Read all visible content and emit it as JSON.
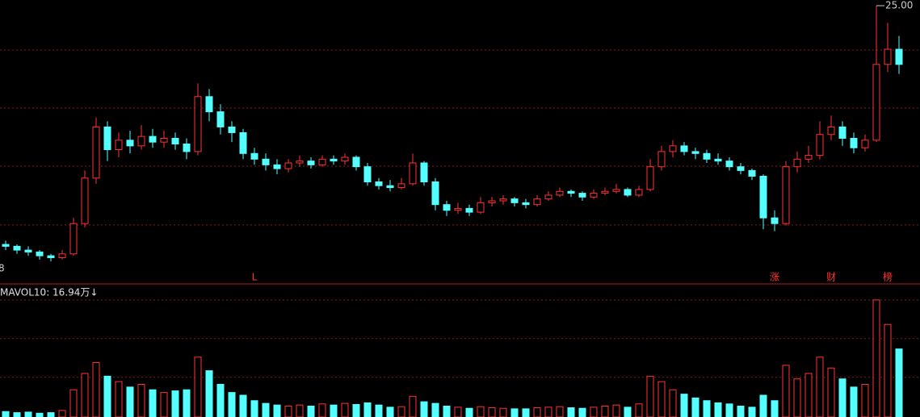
{
  "chart_data": {
    "type": "candlestick",
    "open": [
      12.4,
      12.3,
      12.1,
      12.0,
      11.8,
      11.7,
      11.9,
      13.5,
      15.9,
      18.6,
      17.4,
      17.9,
      17.6,
      18.1,
      17.8,
      18.0,
      17.7,
      17.3,
      20.2,
      19.4,
      18.6,
      18.3,
      17.2,
      16.9,
      16.6,
      16.4,
      16.7,
      16.8,
      16.6,
      16.9,
      16.8,
      17.0,
      16.5,
      15.7,
      15.5,
      15.4,
      15.6,
      16.7,
      15.7,
      14.5,
      14.2,
      14.3,
      14.1,
      14.6,
      14.7,
      14.8,
      14.6,
      14.5,
      14.8,
      15.0,
      15.2,
      15.1,
      14.9,
      15.1,
      15.2,
      15.3,
      15.0,
      15.3,
      16.5,
      17.3,
      17.6,
      17.3,
      17.2,
      16.9,
      16.8,
      16.5,
      16.3,
      16.0,
      13.8,
      13.5,
      16.5,
      16.9,
      17.1,
      18.2,
      18.6,
      18.0,
      17.5,
      17.9,
      21.9,
      22.7
    ],
    "high": [
      12.6,
      12.4,
      12.3,
      12.1,
      11.9,
      12.1,
      13.8,
      16.3,
      19.1,
      18.9,
      18.3,
      18.4,
      18.7,
      18.5,
      18.4,
      18.3,
      18.0,
      20.9,
      20.6,
      19.8,
      18.9,
      18.5,
      17.5,
      17.2,
      16.9,
      16.9,
      17.1,
      17.0,
      17.1,
      17.1,
      17.2,
      17.1,
      16.7,
      15.9,
      15.8,
      15.9,
      17.2,
      16.8,
      15.9,
      14.7,
      14.6,
      14.5,
      14.9,
      14.9,
      15.0,
      14.9,
      14.8,
      15.0,
      15.2,
      15.4,
      15.3,
      15.2,
      15.3,
      15.4,
      15.6,
      15.4,
      15.5,
      16.9,
      17.6,
      17.9,
      17.8,
      17.5,
      17.4,
      17.2,
      17.0,
      16.7,
      16.4,
      16.1,
      14.2,
      16.8,
      17.3,
      17.6,
      18.9,
      19.2,
      18.9,
      18.3,
      18.2,
      25.0,
      24.1,
      23.4
    ],
    "low": [
      12.1,
      11.9,
      11.8,
      11.6,
      11.5,
      11.6,
      11.8,
      13.3,
      15.6,
      16.8,
      17.0,
      17.2,
      17.4,
      17.5,
      17.5,
      17.4,
      16.9,
      17.1,
      18.9,
      18.2,
      17.8,
      16.9,
      16.6,
      16.3,
      16.1,
      16.2,
      16.5,
      16.4,
      16.5,
      16.6,
      16.6,
      16.3,
      15.5,
      15.3,
      15.2,
      15.3,
      15.5,
      15.5,
      14.2,
      13.9,
      14.0,
      13.9,
      14.0,
      14.4,
      14.5,
      14.4,
      14.3,
      14.4,
      14.7,
      14.9,
      14.9,
      14.7,
      14.8,
      15.0,
      15.1,
      14.9,
      14.9,
      15.2,
      16.3,
      17.0,
      17.1,
      16.9,
      16.7,
      16.6,
      16.3,
      16.1,
      15.8,
      13.2,
      13.1,
      13.4,
      16.2,
      16.7,
      16.9,
      17.9,
      17.6,
      17.2,
      17.3,
      17.8,
      21.5,
      21.4
    ],
    "close": [
      12.3,
      12.1,
      12.0,
      11.8,
      11.7,
      11.9,
      13.5,
      15.9,
      18.6,
      17.4,
      17.9,
      17.6,
      18.1,
      17.8,
      18.0,
      17.7,
      17.3,
      20.2,
      19.4,
      18.6,
      18.3,
      17.2,
      16.9,
      16.6,
      16.4,
      16.7,
      16.8,
      16.6,
      16.9,
      16.8,
      17.0,
      16.5,
      15.7,
      15.5,
      15.4,
      15.6,
      16.7,
      15.7,
      14.5,
      14.2,
      14.3,
      14.1,
      14.6,
      14.7,
      14.8,
      14.6,
      14.5,
      14.8,
      15.0,
      15.2,
      15.1,
      14.9,
      15.1,
      15.2,
      15.3,
      15.0,
      15.3,
      16.5,
      17.3,
      17.6,
      17.3,
      17.2,
      16.9,
      16.8,
      16.5,
      16.3,
      16.0,
      13.8,
      13.5,
      16.5,
      16.9,
      17.1,
      18.2,
      18.6,
      18.0,
      17.5,
      17.9,
      21.9,
      22.7,
      21.9
    ],
    "volume": [
      1.0,
      0.8,
      0.9,
      0.7,
      0.8,
      1.2,
      5.0,
      8.0,
      10.0,
      7.5,
      6.5,
      5.5,
      6.0,
      5.0,
      4.5,
      4.8,
      5.0,
      11.0,
      8.5,
      6.0,
      4.5,
      4.0,
      3.0,
      2.5,
      2.2,
      2.0,
      2.2,
      2.0,
      2.4,
      2.2,
      2.5,
      2.3,
      2.6,
      2.2,
      1.8,
      1.9,
      3.8,
      2.8,
      2.5,
      2.0,
      1.8,
      1.6,
      1.9,
      1.7,
      1.6,
      1.5,
      1.5,
      1.7,
      1.8,
      1.9,
      1.7,
      1.6,
      1.8,
      2.0,
      2.2,
      1.8,
      2.4,
      7.5,
      6.5,
      5.0,
      4.2,
      3.5,
      3.0,
      2.6,
      2.4,
      2.0,
      1.8,
      4.0,
      3.0,
      9.5,
      7.0,
      8.0,
      11.0,
      9.0,
      7.0,
      5.5,
      6.0,
      21.5,
      17.0,
      12.5
    ],
    "ylim": [
      10.4,
      25.3
    ],
    "price_grid": [
      22.66,
      19.6,
      16.53,
      13.43
    ],
    "vlim": [
      0,
      24
    ],
    "volume_grid": [
      21.5,
      14.4,
      7.3
    ],
    "max_marker": {
      "value": 25,
      "label": "25.00"
    },
    "volume_label": "MAVOL10: 16.94万↓",
    "edge_label": "8",
    "markers": [
      {
        "index": 22,
        "label": "L"
      },
      {
        "index": 68,
        "label": "涨"
      },
      {
        "index": 73,
        "label": "财"
      },
      {
        "index": 78,
        "label": "榜"
      }
    ],
    "up_color": "#ff3232",
    "down_color": "#54ffff",
    "grid_color": "#8a1a1a"
  }
}
